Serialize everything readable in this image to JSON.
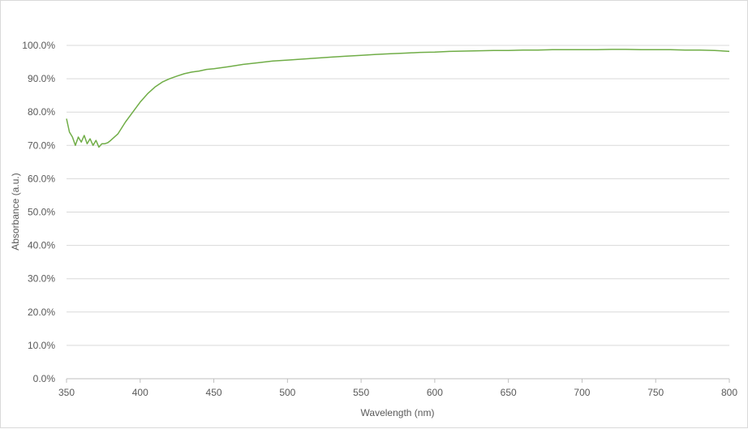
{
  "chart_data": {
    "type": "line",
    "title": "",
    "xlabel": "Wavelength (nm)",
    "ylabel": "Absorbance (a.u.)",
    "xlim": [
      350,
      800
    ],
    "ylim": [
      0,
      100
    ],
    "x_ticks": [
      "350",
      "400",
      "450",
      "500",
      "550",
      "600",
      "650",
      "700",
      "750",
      "800"
    ],
    "y_ticks": [
      "0.0%",
      "10.0%",
      "20.0%",
      "30.0%",
      "40.0%",
      "50.0%",
      "60.0%",
      "70.0%",
      "80.0%",
      "90.0%",
      "100.0%"
    ],
    "grid": "horizontal",
    "legend": "none",
    "series": [
      {
        "color": "#70ad47",
        "x": [
          350,
          352,
          354,
          356,
          358,
          360,
          362,
          364,
          366,
          368,
          370,
          372,
          374,
          376,
          378,
          380,
          385,
          390,
          395,
          400,
          405,
          410,
          415,
          420,
          425,
          430,
          435,
          440,
          445,
          450,
          460,
          470,
          480,
          490,
          500,
          510,
          520,
          530,
          540,
          550,
          560,
          570,
          580,
          590,
          600,
          610,
          620,
          630,
          640,
          650,
          660,
          670,
          680,
          690,
          700,
          710,
          720,
          730,
          740,
          750,
          760,
          770,
          780,
          790,
          800
        ],
        "y": [
          78.0,
          74.0,
          72.5,
          70.0,
          72.5,
          71.0,
          73.0,
          70.5,
          72.0,
          70.0,
          71.5,
          69.5,
          70.5,
          70.5,
          70.8,
          71.5,
          73.5,
          77.0,
          80.0,
          83.0,
          85.5,
          87.5,
          89.0,
          90.0,
          90.8,
          91.5,
          92.0,
          92.3,
          92.8,
          93.0,
          93.6,
          94.3,
          94.8,
          95.3,
          95.6,
          95.9,
          96.2,
          96.5,
          96.8,
          97.0,
          97.3,
          97.5,
          97.7,
          97.9,
          98.0,
          98.2,
          98.3,
          98.4,
          98.5,
          98.5,
          98.6,
          98.6,
          98.7,
          98.7,
          98.7,
          98.7,
          98.8,
          98.8,
          98.7,
          98.7,
          98.7,
          98.6,
          98.6,
          98.5,
          98.2
        ]
      }
    ]
  }
}
